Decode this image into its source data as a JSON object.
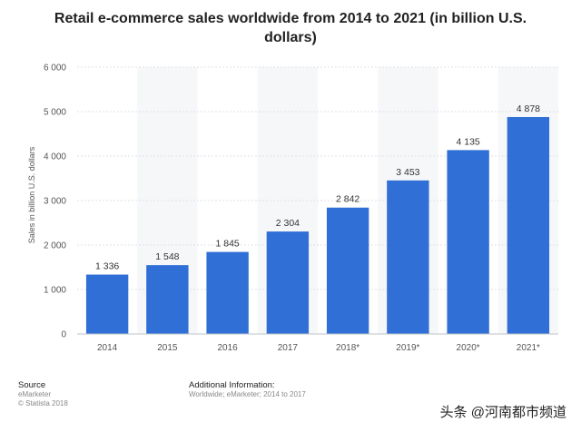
{
  "chart_data": {
    "type": "bar",
    "title_line1": "Retail e-commerce sales worldwide from 2014 to 2021 (in billion U.S.",
    "title_line2": "dollars)",
    "ylabel": "Sales in billion U.S. dollars",
    "xlabel": "",
    "categories": [
      "2014",
      "2015",
      "2016",
      "2017",
      "2018*",
      "2019*",
      "2020*",
      "2021*"
    ],
    "values": [
      1336,
      1548,
      1845,
      2304,
      2842,
      3453,
      4135,
      4878
    ],
    "value_labels": [
      "1 336",
      "1 548",
      "1 845",
      "2 304",
      "2 842",
      "3 453",
      "4 135",
      "4 878"
    ],
    "ylim": [
      0,
      6000
    ],
    "yticks": [
      0,
      1000,
      2000,
      3000,
      4000,
      5000,
      6000
    ],
    "ytick_labels": [
      "0",
      "1 000",
      "2 000",
      "3 000",
      "4 000",
      "5 000",
      "6 000"
    ],
    "grid": true,
    "bar_color": "#2f6fd6"
  },
  "footer": {
    "source_head": "Source",
    "source_line1": "eMarketer",
    "source_line2": "© Statista 2018",
    "info_head": "Additional Information:",
    "info_line1": "Worldwide; eMarketer; 2014 to 2017"
  },
  "watermark": {
    "text": "头条 @河南都市频道"
  }
}
